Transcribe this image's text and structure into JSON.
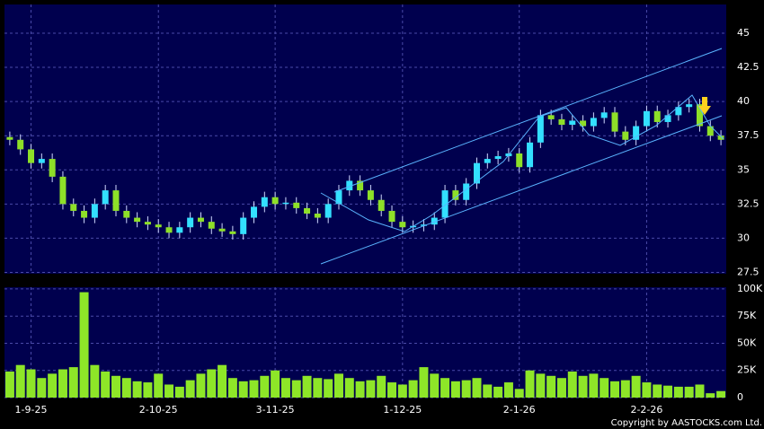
{
  "chart_data": [
    {
      "type": "candlestick",
      "categories": [
        null,
        null,
        "1-9-25",
        null,
        null,
        null,
        null,
        null,
        null,
        null,
        null,
        null,
        null,
        null,
        "2-10-25",
        null,
        null,
        null,
        null,
        null,
        null,
        null,
        null,
        null,
        null,
        "3-11-25",
        null,
        null,
        null,
        null,
        null,
        null,
        null,
        null,
        null,
        null,
        null,
        "1-12-25",
        null,
        null,
        null,
        null,
        null,
        null,
        null,
        null,
        null,
        null,
        "2-1-26",
        null,
        null,
        null,
        null,
        null,
        null,
        null,
        null,
        null,
        null,
        null,
        "2-2-26",
        null,
        null,
        null,
        null,
        null,
        null,
        null
      ],
      "open": [
        37.4,
        37.2,
        36.5,
        35.5,
        35.8,
        34.5,
        32.5,
        32.0,
        31.5,
        32.5,
        33.5,
        32.0,
        31.5,
        31.2,
        31.0,
        30.8,
        30.4,
        30.8,
        31.5,
        31.2,
        30.7,
        30.5,
        30.3,
        31.5,
        32.3,
        33.0,
        32.5,
        32.6,
        32.2,
        31.8,
        31.5,
        32.5,
        33.5,
        34.2,
        33.5,
        32.8,
        32.0,
        31.2,
        30.8,
        30.9,
        31.0,
        31.5,
        33.5,
        32.8,
        34.0,
        35.5,
        35.8,
        36.0,
        36.2,
        35.2,
        37.0,
        39.0,
        38.7,
        38.3,
        38.6,
        38.2,
        38.8,
        39.2,
        37.8,
        37.2,
        38.2,
        39.3,
        38.5,
        39.0,
        39.6,
        39.8,
        38.2,
        37.5
      ],
      "high": [
        37.8,
        37.6,
        36.9,
        36.2,
        36.2,
        34.9,
        32.9,
        32.4,
        32.9,
        33.9,
        33.9,
        32.4,
        31.9,
        31.6,
        31.4,
        31.2,
        31.2,
        31.9,
        31.9,
        31.6,
        31.1,
        30.9,
        31.9,
        32.7,
        33.4,
        33.4,
        33.0,
        33.0,
        32.6,
        32.2,
        32.9,
        33.9,
        34.6,
        34.6,
        33.9,
        33.2,
        32.4,
        31.6,
        31.3,
        31.4,
        31.9,
        33.9,
        33.9,
        34.4,
        35.9,
        36.2,
        36.4,
        36.6,
        36.6,
        37.4,
        39.4,
        39.4,
        39.1,
        39.0,
        39.0,
        39.2,
        39.6,
        39.6,
        38.2,
        38.6,
        39.7,
        39.7,
        39.4,
        40.0,
        40.2,
        40.2,
        38.6,
        37.9
      ],
      "low": [
        36.8,
        36.1,
        35.1,
        35.1,
        34.1,
        32.1,
        31.6,
        31.1,
        31.1,
        32.1,
        31.6,
        31.1,
        30.8,
        30.6,
        30.4,
        30.0,
        30.0,
        30.4,
        30.8,
        30.3,
        30.1,
        29.9,
        29.9,
        31.1,
        31.9,
        32.1,
        32.1,
        31.8,
        31.4,
        31.1,
        31.1,
        32.1,
        33.1,
        33.1,
        32.4,
        31.6,
        30.8,
        30.4,
        30.4,
        30.5,
        30.6,
        31.1,
        32.4,
        32.4,
        33.6,
        35.1,
        35.4,
        35.6,
        34.8,
        34.8,
        36.6,
        38.3,
        37.9,
        37.9,
        37.8,
        37.8,
        38.4,
        37.4,
        36.8,
        36.8,
        37.8,
        38.1,
        38.1,
        38.6,
        39.2,
        37.8,
        37.1,
        36.8
      ],
      "close": [
        37.2,
        36.5,
        35.5,
        35.8,
        34.5,
        32.5,
        32.0,
        31.5,
        32.5,
        33.5,
        32.0,
        31.5,
        31.2,
        31.0,
        30.8,
        30.4,
        30.8,
        31.5,
        31.2,
        30.7,
        30.5,
        30.3,
        31.5,
        32.3,
        33.0,
        32.5,
        32.6,
        32.2,
        31.8,
        31.5,
        32.5,
        33.5,
        34.2,
        33.5,
        32.8,
        32.0,
        31.2,
        30.8,
        30.9,
        31.0,
        31.5,
        33.5,
        32.8,
        34.0,
        35.5,
        35.8,
        36.0,
        36.2,
        35.2,
        37.0,
        39.0,
        38.7,
        38.3,
        38.6,
        38.2,
        38.8,
        39.2,
        37.8,
        37.2,
        38.2,
        39.3,
        38.5,
        39.0,
        39.6,
        39.8,
        38.2,
        37.5,
        37.2
      ],
      "up_color": "#33e0ff",
      "down_color": "#8ee028",
      "ylim": [
        27.4,
        47.1
      ],
      "yticks": [
        27.5,
        30,
        32.5,
        35,
        37.5,
        40,
        42.5,
        45
      ],
      "grid": true
    },
    {
      "type": "bar",
      "color": "#8ee628",
      "values": [
        24000,
        30000,
        26000,
        18000,
        22000,
        26000,
        28000,
        97000,
        30000,
        24000,
        20000,
        18000,
        15000,
        14000,
        22000,
        12000,
        10000,
        16000,
        22000,
        26000,
        30000,
        18000,
        15000,
        16000,
        20000,
        25000,
        18000,
        16000,
        20000,
        18000,
        17000,
        22000,
        18000,
        15000,
        16000,
        20000,
        14000,
        12000,
        16000,
        28000,
        22000,
        18000,
        15000,
        16000,
        18000,
        12000,
        10000,
        14000,
        8000,
        25000,
        22000,
        20000,
        18000,
        24000,
        20000,
        22000,
        18000,
        15000,
        16000,
        20000,
        14000,
        12000,
        11000,
        10000,
        10000,
        12000,
        4000,
        6000
      ],
      "ylim": [
        0,
        101600
      ],
      "yticks": [
        0,
        {
          "value": 25000,
          "label": "25K"
        },
        {
          "value": 50000,
          "label": "50K"
        },
        {
          "value": 75000,
          "label": "75K"
        },
        {
          "value": 100000,
          "label": "100K"
        }
      ],
      "grid": true
    }
  ],
  "copyright": "Copyright by AASTOCKS.com Ltd."
}
